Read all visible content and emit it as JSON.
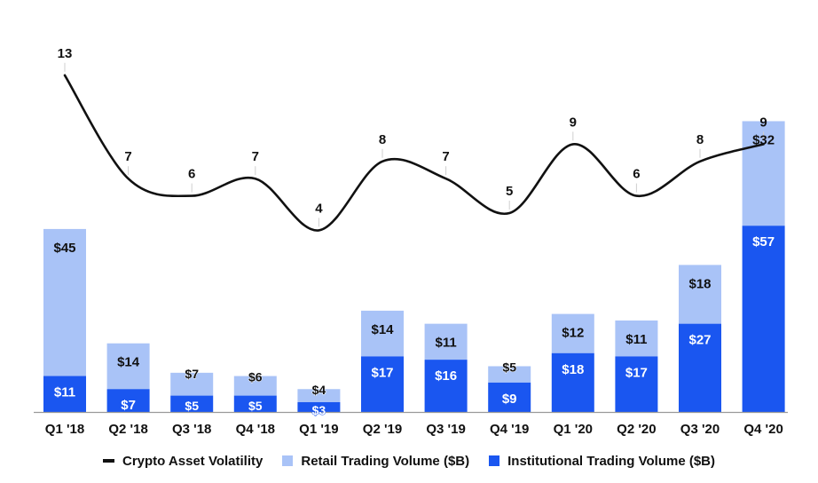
{
  "chart_data": {
    "type": "bar",
    "stacked": true,
    "categories": [
      "Q1 '18",
      "Q2 '18",
      "Q3 '18",
      "Q4 '18",
      "Q1 '19",
      "Q2 '19",
      "Q3 '19",
      "Q4 '19",
      "Q1 '20",
      "Q2 '20",
      "Q3 '20",
      "Q4 '20"
    ],
    "series": [
      {
        "name": "Institutional Trading Volume ($B)",
        "kind": "bar",
        "color": "#1a56f0",
        "values": [
          11,
          7,
          5,
          5,
          3,
          17,
          16,
          9,
          18,
          17,
          27,
          57
        ],
        "labels": [
          "$11",
          "$7",
          "$5",
          "$5",
          "$3",
          "$17",
          "$16",
          "$9",
          "$18",
          "$17",
          "$27",
          "$57"
        ]
      },
      {
        "name": "Retail Trading Volume ($B)",
        "kind": "bar",
        "color": "#a9c3f7",
        "values": [
          45,
          14,
          7,
          6,
          4,
          14,
          11,
          5,
          12,
          11,
          18,
          32
        ],
        "labels": [
          "$45",
          "$14",
          "$7",
          "$6",
          "$4",
          "$14",
          "$11",
          "$5",
          "$12",
          "$11",
          "$18",
          "$32"
        ]
      },
      {
        "name": "Crypto Asset Volatility",
        "kind": "line",
        "color": "#111111",
        "values": [
          13,
          7,
          6,
          7,
          4,
          8,
          7,
          5,
          9,
          6,
          8,
          9
        ],
        "labels": [
          "13",
          "7",
          "6",
          "7",
          "4",
          "8",
          "7",
          "5",
          "9",
          "6",
          "8",
          "9"
        ]
      }
    ],
    "legend": "bottom-center",
    "grid": false
  }
}
